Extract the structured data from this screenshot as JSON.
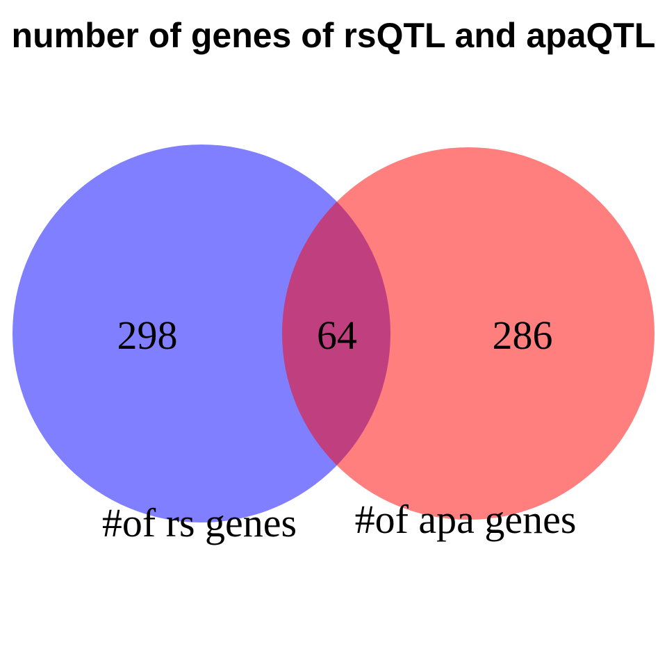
{
  "title": "number of genes of rsQTL and apaQTL",
  "sets": [
    {
      "label": "#of rs genes",
      "color": "#0000ff",
      "opacity": 0.5
    },
    {
      "label": "#of apa genes",
      "color": "#ff0000",
      "opacity": 0.5
    }
  ],
  "counts": {
    "left_only": "298",
    "intersection": "64",
    "right_only": "286"
  }
}
